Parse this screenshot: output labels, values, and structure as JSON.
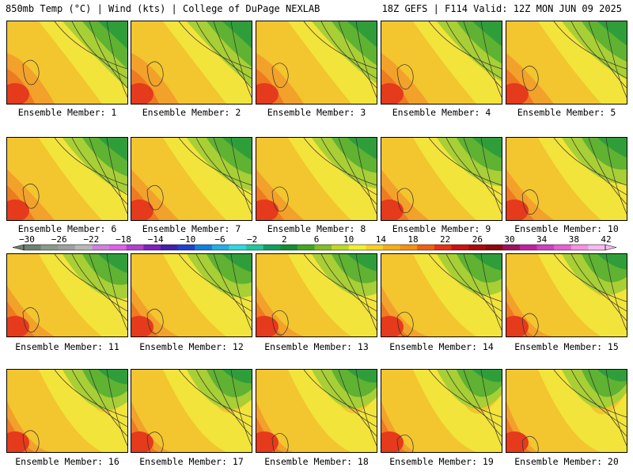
{
  "header": {
    "title_left": "850mb Temp (°C) | Wind (kts) | College of DuPage NEXLAB",
    "title_right": "18Z GEFS | F114 Valid: 12Z MON JUN 09 2025"
  },
  "caption_prefix": "Ensemble Member:",
  "members": [
    "1",
    "2",
    "3",
    "4",
    "5",
    "6",
    "7",
    "8",
    "9",
    "10",
    "11",
    "12",
    "13",
    "14",
    "15",
    "16",
    "17",
    "18",
    "19",
    "20"
  ],
  "colorbar": {
    "labels": [
      "−30",
      "−26",
      "−22",
      "−18",
      "−14",
      "−10",
      "−6",
      "−2",
      "2",
      "6",
      "10",
      "14",
      "18",
      "22",
      "26",
      "30",
      "34",
      "38",
      "42"
    ],
    "colors": [
      "#6e8070",
      "#8a9a8a",
      "#a0a0a0",
      "#b8b8b8",
      "#d080e0",
      "#e060e8",
      "#b040d0",
      "#8020c0",
      "#4020b0",
      "#2040d0",
      "#1080e0",
      "#20b0e8",
      "#30d8e0",
      "#20c8a0",
      "#10a060",
      "#109030",
      "#40a820",
      "#80c020",
      "#c0d820",
      "#f0f030",
      "#f8d020",
      "#f8b010",
      "#f89010",
      "#f06010",
      "#e83010",
      "#d01010",
      "#b00808",
      "#900808",
      "#a01060",
      "#c020a0",
      "#d040c0",
      "#e860d0",
      "#f890e0",
      "#f8b8f0"
    ]
  }
}
